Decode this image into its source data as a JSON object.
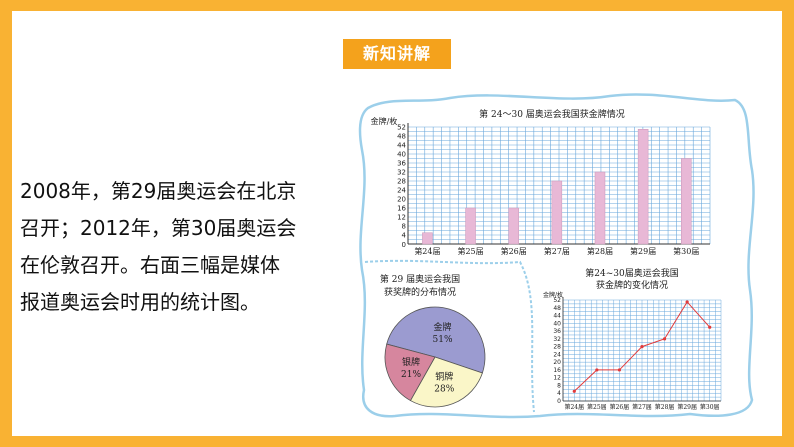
{
  "header": {
    "badge_label": "新知讲解"
  },
  "body": {
    "lines": [
      "2008年，第29届奥运会在北京",
      "召开；2012年，第30届奥运会",
      "在伦敦召开。右面三幅是媒体",
      "报道奥运会时用的统计图。"
    ]
  },
  "colors": {
    "background": "#F9B233",
    "badge": "#F4A21C",
    "grid": "#6AA8DC",
    "bar": "#E8B8D6",
    "line": "#E23A3A",
    "pie_gold": "#9B9BD0",
    "pie_silver": "#D6869E",
    "pie_bronze": "#FAF6C8",
    "frame": "#9CCFEA"
  },
  "chart_data": [
    {
      "type": "bar",
      "title": "第 24～30 届奥运会我国获金牌情况",
      "ylabel": "金牌/枚",
      "categories": [
        "第24届",
        "第25届",
        "第26届",
        "第27届",
        "第28届",
        "第29届",
        "第30届"
      ],
      "values": [
        5,
        16,
        16,
        28,
        32,
        51,
        38
      ],
      "yticks": [
        "4",
        "8",
        "12",
        "16",
        "20",
        "24",
        "28",
        "32",
        "36",
        "40",
        "44",
        "48",
        "52"
      ],
      "ylim": [
        0,
        52
      ],
      "grid": true
    },
    {
      "type": "pie",
      "title_lines": [
        "第 29 届奥运会我国",
        "获奖牌的分布情况"
      ],
      "slices": [
        {
          "name": "金牌",
          "percent": 51,
          "label": "51%"
        },
        {
          "name": "铜牌",
          "percent": 28,
          "label": "28%"
        },
        {
          "name": "银牌",
          "percent": 21,
          "label": "21%"
        }
      ]
    },
    {
      "type": "line",
      "title_lines": [
        "第24~30届奥运会我国",
        "获金牌的变化情况"
      ],
      "ylabel": "金牌/枚",
      "categories": [
        "第24届",
        "第25届",
        "第26届",
        "第27届",
        "第28届",
        "第29届",
        "第30届"
      ],
      "values": [
        5,
        16,
        16,
        28,
        32,
        51,
        38
      ],
      "yticks": [
        "0",
        "4",
        "8",
        "12",
        "16",
        "20",
        "24",
        "28",
        "32",
        "36",
        "40",
        "44",
        "48",
        "52"
      ],
      "ylim": [
        0,
        52
      ],
      "grid": true
    }
  ]
}
